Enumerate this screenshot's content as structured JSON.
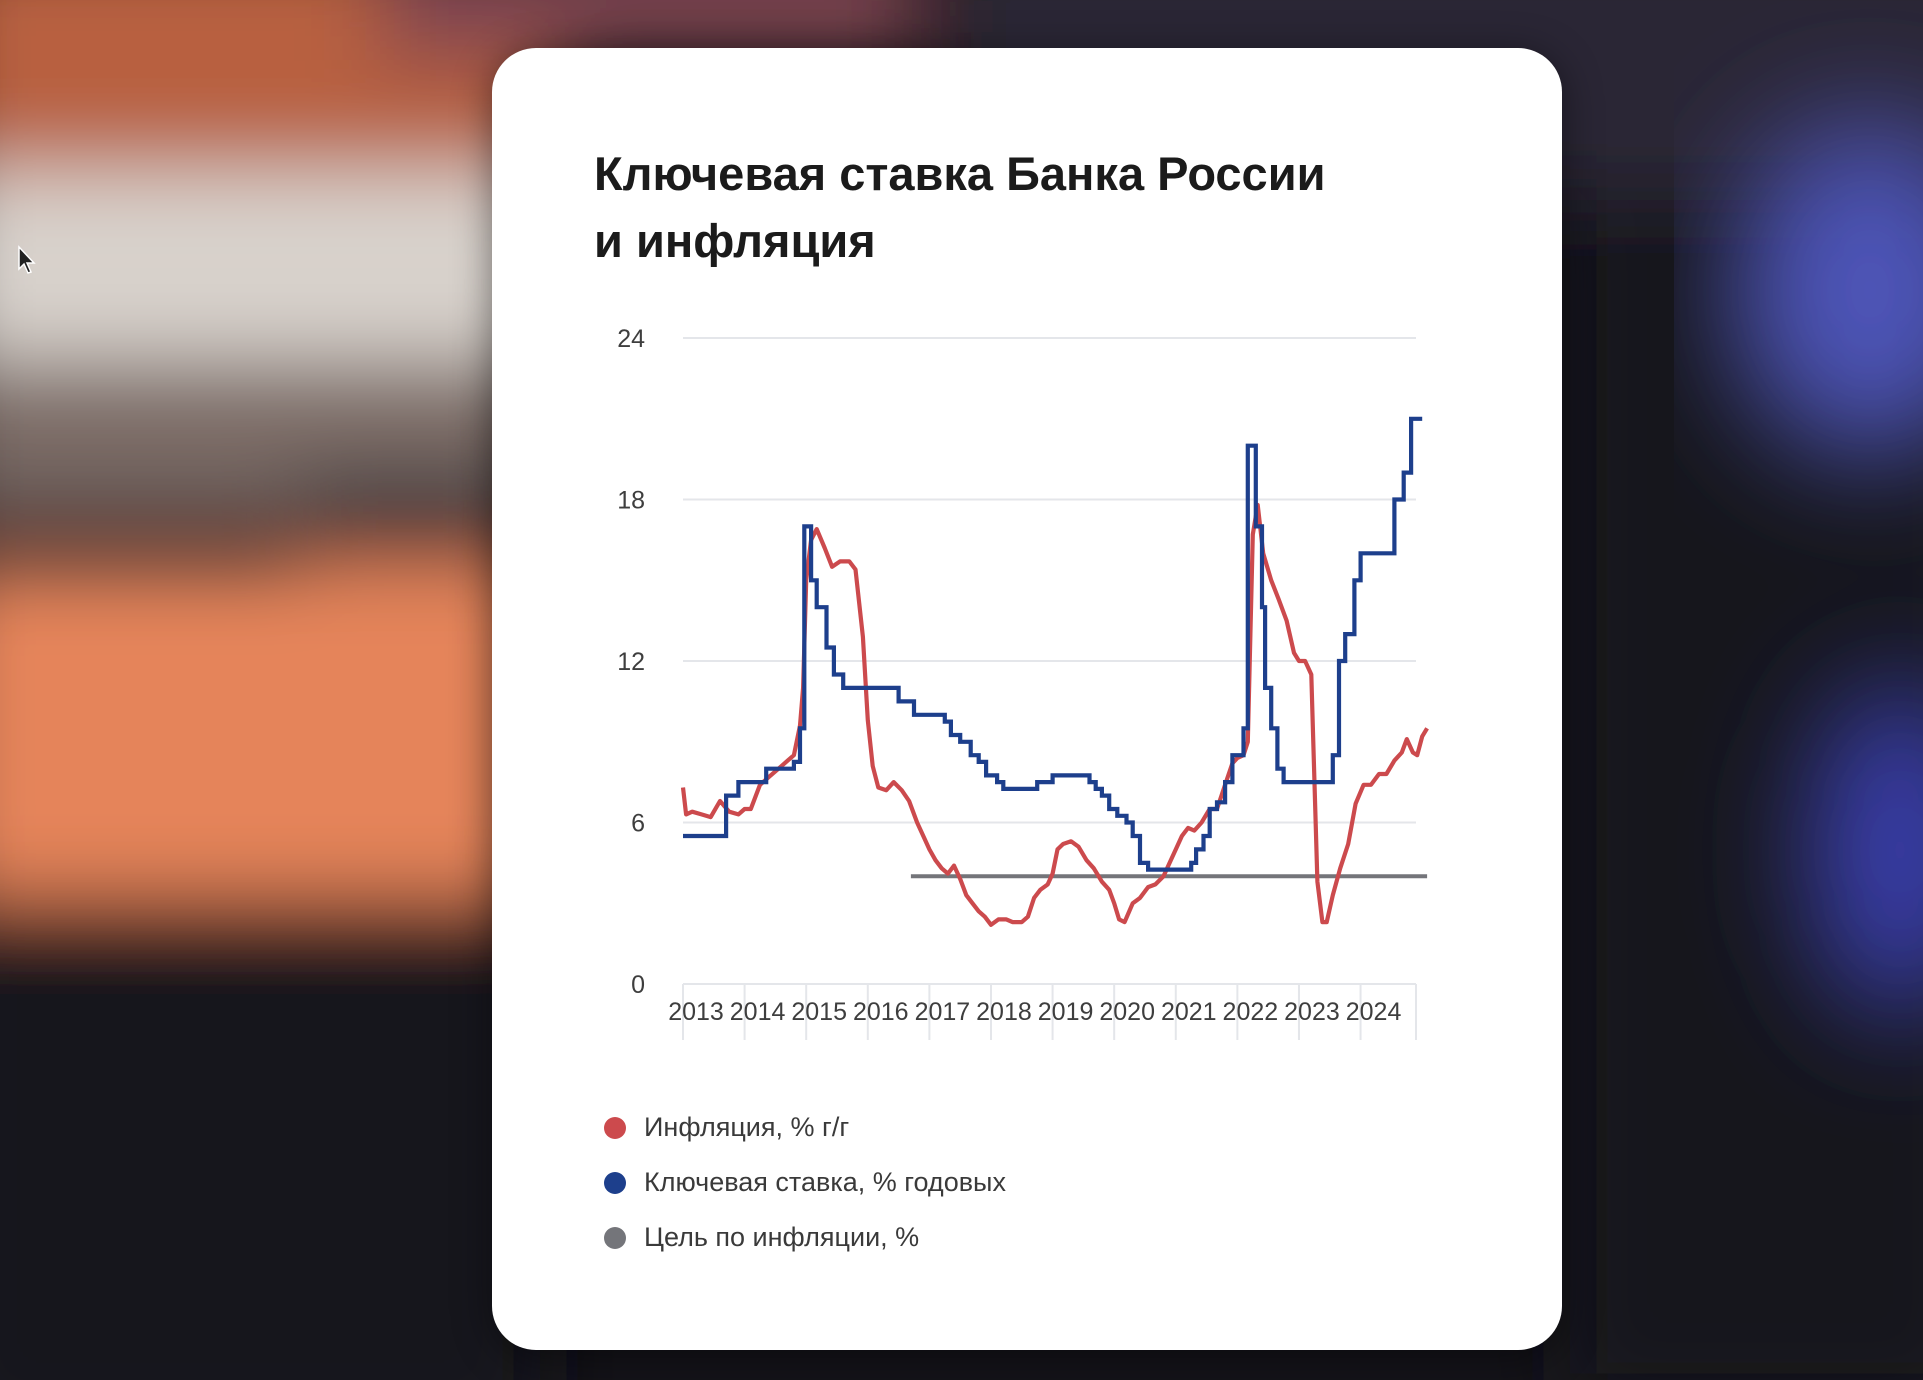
{
  "colors": {
    "inflation": "#cc4a4d",
    "key_rate": "#1d3f8c",
    "target": "#74757a",
    "grid": "#e4e6ea",
    "axis_text": "#3e3e3e"
  },
  "chart_data": {
    "type": "line",
    "title": [
      "Ключевая ставка Банка России",
      "и инфляция"
    ],
    "xlabel": "",
    "ylabel": "",
    "ylim": [
      0,
      24
    ],
    "xlim": [
      2013.0,
      2024.9
    ],
    "yticks": [
      0,
      6,
      12,
      18,
      24
    ],
    "ytick_labels": [
      "0",
      "6",
      "12",
      "18",
      "24"
    ],
    "xticks": [
      2013,
      2014,
      2015,
      2016,
      2017,
      2018,
      2019,
      2020,
      2021,
      2022,
      2023,
      2024
    ],
    "xtick_labels": [
      "2013",
      "2014",
      "2015",
      "2016",
      "2017",
      "2018",
      "2019",
      "2020",
      "2021",
      "2022",
      "2023",
      "2024"
    ],
    "grid": "horizontal",
    "legend_position": "bottom-left",
    "series": [
      {
        "name": "Инфляция, % г/г",
        "color_key": "inflation",
        "step": false,
        "points": [
          [
            2013.0,
            7.3
          ],
          [
            2013.05,
            6.3
          ],
          [
            2013.15,
            6.4
          ],
          [
            2013.3,
            6.3
          ],
          [
            2013.45,
            6.2
          ],
          [
            2013.6,
            6.8
          ],
          [
            2013.75,
            6.4
          ],
          [
            2013.9,
            6.3
          ],
          [
            2014.0,
            6.5
          ],
          [
            2014.1,
            6.5
          ],
          [
            2014.25,
            7.4
          ],
          [
            2014.4,
            7.7
          ],
          [
            2014.55,
            8.0
          ],
          [
            2014.7,
            8.3
          ],
          [
            2014.8,
            8.5
          ],
          [
            2014.9,
            9.6
          ],
          [
            2014.95,
            11.0
          ],
          [
            2015.0,
            15.0
          ],
          [
            2015.08,
            16.5
          ],
          [
            2015.17,
            16.9
          ],
          [
            2015.3,
            16.2
          ],
          [
            2015.42,
            15.5
          ],
          [
            2015.55,
            15.7
          ],
          [
            2015.7,
            15.7
          ],
          [
            2015.8,
            15.4
          ],
          [
            2015.92,
            12.9
          ],
          [
            2016.0,
            9.8
          ],
          [
            2016.08,
            8.1
          ],
          [
            2016.17,
            7.3
          ],
          [
            2016.3,
            7.2
          ],
          [
            2016.42,
            7.5
          ],
          [
            2016.55,
            7.2
          ],
          [
            2016.67,
            6.8
          ],
          [
            2016.8,
            6.0
          ],
          [
            2016.92,
            5.4
          ],
          [
            2017.0,
            5.0
          ],
          [
            2017.1,
            4.6
          ],
          [
            2017.2,
            4.3
          ],
          [
            2017.3,
            4.1
          ],
          [
            2017.4,
            4.4
          ],
          [
            2017.5,
            3.9
          ],
          [
            2017.6,
            3.3
          ],
          [
            2017.7,
            3.0
          ],
          [
            2017.8,
            2.7
          ],
          [
            2017.9,
            2.5
          ],
          [
            2018.0,
            2.2
          ],
          [
            2018.12,
            2.4
          ],
          [
            2018.25,
            2.4
          ],
          [
            2018.35,
            2.3
          ],
          [
            2018.5,
            2.3
          ],
          [
            2018.6,
            2.5
          ],
          [
            2018.7,
            3.2
          ],
          [
            2018.8,
            3.5
          ],
          [
            2018.92,
            3.7
          ],
          [
            2019.0,
            4.1
          ],
          [
            2019.08,
            5.0
          ],
          [
            2019.17,
            5.2
          ],
          [
            2019.3,
            5.3
          ],
          [
            2019.42,
            5.1
          ],
          [
            2019.55,
            4.6
          ],
          [
            2019.67,
            4.3
          ],
          [
            2019.8,
            3.8
          ],
          [
            2019.92,
            3.5
          ],
          [
            2020.0,
            3.0
          ],
          [
            2020.08,
            2.4
          ],
          [
            2020.17,
            2.3
          ],
          [
            2020.3,
            3.0
          ],
          [
            2020.42,
            3.2
          ],
          [
            2020.55,
            3.6
          ],
          [
            2020.67,
            3.7
          ],
          [
            2020.8,
            4.0
          ],
          [
            2020.92,
            4.6
          ],
          [
            2021.0,
            5.0
          ],
          [
            2021.1,
            5.5
          ],
          [
            2021.2,
            5.8
          ],
          [
            2021.3,
            5.7
          ],
          [
            2021.42,
            6.0
          ],
          [
            2021.55,
            6.5
          ],
          [
            2021.67,
            6.5
          ],
          [
            2021.8,
            7.4
          ],
          [
            2021.92,
            8.2
          ],
          [
            2022.0,
            8.4
          ],
          [
            2022.1,
            8.5
          ],
          [
            2022.17,
            9.0
          ],
          [
            2022.25,
            16.7
          ],
          [
            2022.33,
            17.8
          ],
          [
            2022.42,
            16.0
          ],
          [
            2022.55,
            15.0
          ],
          [
            2022.67,
            14.3
          ],
          [
            2022.8,
            13.5
          ],
          [
            2022.92,
            12.3
          ],
          [
            2023.0,
            12.0
          ],
          [
            2023.1,
            12.0
          ],
          [
            2023.2,
            11.5
          ],
          [
            2023.3,
            3.8
          ],
          [
            2023.38,
            2.3
          ],
          [
            2023.45,
            2.3
          ],
          [
            2023.55,
            3.3
          ],
          [
            2023.67,
            4.3
          ],
          [
            2023.8,
            5.2
          ],
          [
            2023.92,
            6.7
          ],
          [
            2024.05,
            7.4
          ],
          [
            2024.17,
            7.4
          ],
          [
            2024.3,
            7.8
          ],
          [
            2024.42,
            7.8
          ],
          [
            2024.55,
            8.3
          ],
          [
            2024.67,
            8.6
          ],
          [
            2024.75,
            9.1
          ],
          [
            2024.85,
            8.6
          ],
          [
            2024.92,
            8.5
          ],
          [
            2025.0,
            9.2
          ],
          [
            2025.08,
            9.5
          ]
        ]
      },
      {
        "name": "Ключевая ставка, % годовых",
        "color_key": "key_rate",
        "step": true,
        "points": [
          [
            2013.0,
            5.5
          ],
          [
            2013.7,
            7.0
          ],
          [
            2013.9,
            7.5
          ],
          [
            2014.25,
            7.5
          ],
          [
            2014.35,
            8.0
          ],
          [
            2014.7,
            8.0
          ],
          [
            2014.8,
            8.25
          ],
          [
            2014.9,
            9.5
          ],
          [
            2014.97,
            17.0
          ],
          [
            2015.08,
            15.0
          ],
          [
            2015.17,
            14.0
          ],
          [
            2015.33,
            12.5
          ],
          [
            2015.45,
            11.5
          ],
          [
            2015.6,
            11.0
          ],
          [
            2016.5,
            10.5
          ],
          [
            2016.75,
            10.0
          ],
          [
            2017.25,
            9.75
          ],
          [
            2017.35,
            9.25
          ],
          [
            2017.5,
            9.0
          ],
          [
            2017.67,
            8.5
          ],
          [
            2017.8,
            8.25
          ],
          [
            2017.92,
            7.75
          ],
          [
            2018.1,
            7.5
          ],
          [
            2018.2,
            7.25
          ],
          [
            2018.75,
            7.5
          ],
          [
            2019.0,
            7.75
          ],
          [
            2019.6,
            7.5
          ],
          [
            2019.7,
            7.25
          ],
          [
            2019.8,
            7.0
          ],
          [
            2019.92,
            6.5
          ],
          [
            2020.05,
            6.25
          ],
          [
            2020.2,
            6.0
          ],
          [
            2020.3,
            5.5
          ],
          [
            2020.42,
            4.5
          ],
          [
            2020.55,
            4.25
          ],
          [
            2021.25,
            4.5
          ],
          [
            2021.33,
            5.0
          ],
          [
            2021.45,
            5.5
          ],
          [
            2021.55,
            6.5
          ],
          [
            2021.67,
            6.75
          ],
          [
            2021.8,
            7.5
          ],
          [
            2021.92,
            8.5
          ],
          [
            2022.1,
            9.5
          ],
          [
            2022.17,
            20.0
          ],
          [
            2022.3,
            17.0
          ],
          [
            2022.4,
            14.0
          ],
          [
            2022.45,
            11.0
          ],
          [
            2022.55,
            9.5
          ],
          [
            2022.65,
            8.0
          ],
          [
            2022.75,
            7.5
          ],
          [
            2023.55,
            8.5
          ],
          [
            2023.65,
            12.0
          ],
          [
            2023.75,
            13.0
          ],
          [
            2023.9,
            15.0
          ],
          [
            2024.0,
            16.0
          ],
          [
            2024.55,
            18.0
          ],
          [
            2024.7,
            19.0
          ],
          [
            2024.82,
            21.0
          ],
          [
            2025.0,
            21.0
          ]
        ]
      },
      {
        "name": "Цель по инфляции, %",
        "color_key": "target",
        "step": false,
        "points": [
          [
            2016.7,
            4.0
          ],
          [
            2025.08,
            4.0
          ]
        ]
      }
    ]
  }
}
